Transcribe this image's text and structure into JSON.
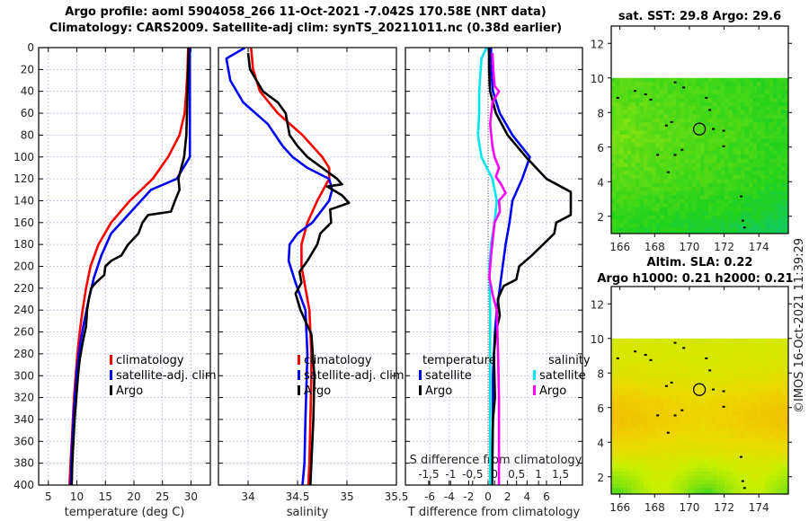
{
  "title_line1": "Argo profile: aoml 5904058_266 11-Oct-2021 -7.042S 170.58E (NRT data)",
  "title_line2": "Climatology: CARS2009. Satellite-adj clim: synTS_20211011.nc (0.38d earlier)",
  "colors": {
    "climatology": "#ff0000",
    "satellite": "#0000ff",
    "argo": "#000000",
    "sal_satellite": "#00e5ee",
    "sal_argo": "#ff00ff"
  },
  "chart_data": [
    {
      "type": "line",
      "id": "temperature",
      "xlabel": "temperature (deg C)",
      "ylabel": "",
      "xlim": [
        3.3,
        33.4
      ],
      "ylim": [
        400,
        0
      ],
      "xticks": [
        5,
        10,
        15,
        20,
        25,
        30
      ],
      "yticks": [
        0,
        20,
        40,
        60,
        80,
        100,
        120,
        140,
        160,
        180,
        200,
        220,
        240,
        260,
        280,
        300,
        320,
        340,
        360,
        380,
        400
      ],
      "grid": true,
      "legend": {
        "placement": "right-middle",
        "entries": [
          "climatology",
          "satellite-adj. clim",
          "Argo"
        ]
      },
      "series": [
        {
          "name": "climatology",
          "color": "#ff0000",
          "points": [
            [
              29.5,
              0
            ],
            [
              29.4,
              20
            ],
            [
              29.2,
              40
            ],
            [
              28.9,
              60
            ],
            [
              28,
              80
            ],
            [
              26,
              100
            ],
            [
              23.3,
              120
            ],
            [
              19.3,
              140
            ],
            [
              16,
              160
            ],
            [
              13.8,
              180
            ],
            [
              12.4,
              200
            ],
            [
              11.6,
              220
            ],
            [
              11,
              240
            ],
            [
              10.5,
              260
            ],
            [
              10.1,
              280
            ],
            [
              9.8,
              300
            ],
            [
              9.5,
              320
            ],
            [
              9.3,
              340
            ],
            [
              9.1,
              360
            ],
            [
              8.9,
              380
            ],
            [
              8.7,
              400
            ]
          ]
        },
        {
          "name": "satellite-adj. clim",
          "color": "#0000ff",
          "points": [
            [
              29.8,
              0
            ],
            [
              29.8,
              20
            ],
            [
              29.8,
              40
            ],
            [
              29.8,
              60
            ],
            [
              29.8,
              80
            ],
            [
              29.8,
              100
            ],
            [
              27.5,
              120
            ],
            [
              23,
              130
            ],
            [
              19.5,
              150
            ],
            [
              16,
              170
            ],
            [
              14.3,
              190
            ],
            [
              13,
              210
            ],
            [
              12.1,
              230
            ],
            [
              11.3,
              250
            ],
            [
              10.6,
              270
            ],
            [
              10.1,
              290
            ],
            [
              9.8,
              310
            ],
            [
              9.5,
              330
            ],
            [
              9.3,
              350
            ],
            [
              9.1,
              370
            ],
            [
              8.9,
              400
            ]
          ]
        },
        {
          "name": "Argo",
          "color": "#000000",
          "points": [
            [
              29.6,
              0
            ],
            [
              29.5,
              20
            ],
            [
              29.4,
              40
            ],
            [
              29.3,
              60
            ],
            [
              29.2,
              80
            ],
            [
              28.8,
              100
            ],
            [
              28.3,
              110
            ],
            [
              27.8,
              120
            ],
            [
              28,
              130
            ],
            [
              27.2,
              140
            ],
            [
              26.5,
              150
            ],
            [
              22.5,
              153
            ],
            [
              21.5,
              160
            ],
            [
              20.8,
              170
            ],
            [
              19,
              180
            ],
            [
              17.8,
              190
            ],
            [
              16,
              195
            ],
            [
              15,
              200
            ],
            [
              14.8,
              208
            ],
            [
              13.3,
              215
            ],
            [
              12.5,
              220
            ],
            [
              12.1,
              230
            ],
            [
              11.8,
              240
            ],
            [
              11.6,
              255
            ],
            [
              11,
              270
            ],
            [
              10.5,
              285
            ],
            [
              10.2,
              300
            ],
            [
              9.9,
              320
            ],
            [
              9.6,
              340
            ],
            [
              9.4,
              360
            ],
            [
              9.2,
              380
            ],
            [
              9.1,
              400
            ]
          ]
        }
      ]
    },
    {
      "type": "line",
      "id": "salinity",
      "xlabel": "salinity",
      "xlim": [
        33.7,
        35.5
      ],
      "ylim": [
        400,
        0
      ],
      "xticks": [
        34,
        34.5,
        35,
        35.5
      ],
      "grid": true,
      "legend": {
        "placement": "right-middle",
        "entries": [
          "climatology",
          "satellite-adj. clim",
          "Argo"
        ]
      },
      "series": [
        {
          "name": "climatology",
          "color": "#ff0000",
          "points": [
            [
              34.03,
              0
            ],
            [
              34.05,
              20
            ],
            [
              34.12,
              40
            ],
            [
              34.3,
              60
            ],
            [
              34.55,
              80
            ],
            [
              34.75,
              100
            ],
            [
              34.82,
              110
            ],
            [
              34.82,
              120
            ],
            [
              34.7,
              140
            ],
            [
              34.6,
              160
            ],
            [
              34.54,
              180
            ],
            [
              34.54,
              200
            ],
            [
              34.58,
              220
            ],
            [
              34.62,
              240
            ],
            [
              34.63,
              260
            ],
            [
              34.64,
              280
            ],
            [
              34.64,
              300
            ],
            [
              34.63,
              340
            ],
            [
              34.62,
              380
            ],
            [
              34.61,
              400
            ]
          ]
        },
        {
          "name": "satellite-adj. clim",
          "color": "#0000ff",
          "points": [
            [
              33.97,
              0
            ],
            [
              33.78,
              10
            ],
            [
              33.82,
              30
            ],
            [
              33.95,
              50
            ],
            [
              34.2,
              70
            ],
            [
              34.35,
              90
            ],
            [
              34.45,
              100
            ],
            [
              34.6,
              110
            ],
            [
              34.82,
              120
            ],
            [
              34.85,
              130
            ],
            [
              34.82,
              140
            ],
            [
              34.65,
              160
            ],
            [
              34.5,
              170
            ],
            [
              34.42,
              180
            ],
            [
              34.41,
              195
            ],
            [
              34.48,
              215
            ],
            [
              34.58,
              240
            ],
            [
              34.6,
              280
            ],
            [
              34.58,
              340
            ],
            [
              34.57,
              380
            ],
            [
              34.55,
              400
            ]
          ]
        },
        {
          "name": "Argo",
          "color": "#000000",
          "points": [
            [
              34,
              5
            ],
            [
              34.02,
              20
            ],
            [
              34.15,
              40
            ],
            [
              34.3,
              50
            ],
            [
              34.38,
              60
            ],
            [
              34.42,
              80
            ],
            [
              34.5,
              90
            ],
            [
              34.6,
              100
            ],
            [
              34.75,
              110
            ],
            [
              34.9,
              120
            ],
            [
              34.95,
              125
            ],
            [
              34.8,
              127
            ],
            [
              34.95,
              135
            ],
            [
              35.02,
              142
            ],
            [
              34.83,
              148
            ],
            [
              34.84,
              160
            ],
            [
              34.73,
              170
            ],
            [
              34.7,
              180
            ],
            [
              34.6,
              195
            ],
            [
              34.52,
              205
            ],
            [
              34.54,
              215
            ],
            [
              34.48,
              225
            ],
            [
              34.53,
              240
            ],
            [
              34.58,
              250
            ],
            [
              34.64,
              262
            ],
            [
              34.67,
              300
            ],
            [
              34.66,
              340
            ],
            [
              34.64,
              380
            ],
            [
              34.63,
              400
            ]
          ]
        }
      ]
    },
    {
      "type": "line",
      "id": "difference",
      "xlabel": "T difference from climatology",
      "x2label": "S difference from climatology",
      "xlim": [
        -8.5,
        9.7
      ],
      "x2lim": [
        -2.03,
        2.0
      ],
      "ylim": [
        400,
        0
      ],
      "xticks": [
        -6,
        -4,
        -2,
        0,
        2,
        4,
        6
      ],
      "x2ticks": [
        -1.5,
        -1,
        -0.5,
        0,
        0.5,
        1,
        1.5
      ],
      "grid": true,
      "legend": {
        "placement": "right-middle",
        "groups": [
          {
            "title": "temperature",
            "entries": [
              "satellite",
              "Argo"
            ]
          },
          {
            "title": "salinity",
            "entries": [
              "satellite",
              "Argo"
            ]
          }
        ]
      },
      "series": [
        {
          "name": "temperature satellite",
          "axis": "T",
          "color": "#0000ff",
          "points": [
            [
              0.3,
              0
            ],
            [
              0.3,
              20
            ],
            [
              0.5,
              40
            ],
            [
              1.2,
              60
            ],
            [
              2.5,
              80
            ],
            [
              4.3,
              100
            ],
            [
              3.5,
              120
            ],
            [
              2.5,
              140
            ],
            [
              2.2,
              160
            ],
            [
              1.8,
              180
            ],
            [
              1.5,
              200
            ],
            [
              1.2,
              220
            ],
            [
              0.9,
              240
            ],
            [
              0.7,
              260
            ],
            [
              0.5,
              300
            ],
            [
              0.5,
              340
            ],
            [
              0.4,
              400
            ]
          ]
        },
        {
          "name": "temperature Argo",
          "axis": "T",
          "color": "#000000",
          "points": [
            [
              0.1,
              0
            ],
            [
              0.1,
              20
            ],
            [
              0.2,
              40
            ],
            [
              0.8,
              60
            ],
            [
              2.0,
              80
            ],
            [
              3.9,
              100
            ],
            [
              6,
              120
            ],
            [
              8.5,
              132
            ],
            [
              8.5,
              153
            ],
            [
              7,
              160
            ],
            [
              6.8,
              170
            ],
            [
              4.5,
              190
            ],
            [
              3.2,
              200
            ],
            [
              2.9,
              212
            ],
            [
              1.6,
              218
            ],
            [
              1.0,
              230
            ],
            [
              1.2,
              245
            ],
            [
              0.8,
              260
            ],
            [
              0.6,
              280
            ],
            [
              0.7,
              320
            ],
            [
              0.5,
              340
            ],
            [
              0.4,
              400
            ]
          ]
        },
        {
          "name": "salinity satellite",
          "axis": "S",
          "color": "#00e5ee",
          "points": [
            [
              -0.18,
              0
            ],
            [
              -0.3,
              10
            ],
            [
              -0.35,
              40
            ],
            [
              -0.35,
              60
            ],
            [
              -0.38,
              80
            ],
            [
              -0.3,
              100
            ],
            [
              -0.05,
              120
            ],
            [
              0.05,
              140
            ],
            [
              0.0,
              160
            ],
            [
              -0.08,
              180
            ],
            [
              -0.12,
              200
            ],
            [
              -0.1,
              240
            ],
            [
              -0.1,
              300
            ],
            [
              -0.1,
              400
            ]
          ]
        },
        {
          "name": "salinity Argo",
          "axis": "S",
          "color": "#ff00ff",
          "points": [
            [
              -0.05,
              5
            ],
            [
              -0.03,
              20
            ],
            [
              0.0,
              35
            ],
            [
              0.1,
              40
            ],
            [
              -0.05,
              50
            ],
            [
              -0.1,
              70
            ],
            [
              -0.05,
              90
            ],
            [
              0.0,
              100
            ],
            [
              0.1,
              110
            ],
            [
              0.03,
              118
            ],
            [
              0.15,
              125
            ],
            [
              0.25,
              133
            ],
            [
              0.1,
              140
            ],
            [
              0.12,
              150
            ],
            [
              0.0,
              160
            ],
            [
              -0.08,
              190
            ],
            [
              -0.12,
              210
            ],
            [
              -0.05,
              225
            ],
            [
              0.05,
              240
            ],
            [
              0.08,
              280
            ],
            [
              0.1,
              320
            ],
            [
              0.1,
              400
            ]
          ]
        }
      ]
    },
    {
      "type": "heatmap",
      "id": "sst-map",
      "title": "sat. SST: 29.8 Argo: 29.6",
      "xlim": [
        165.5,
        175.7
      ],
      "ylim": [
        1,
        13
      ],
      "xticks": [
        166,
        168,
        170,
        172,
        174
      ],
      "yticks": [
        2,
        4,
        6,
        8,
        10,
        12
      ],
      "data_extent_lat": [
        1,
        10
      ],
      "argo_position": [
        170.58,
        7.042
      ],
      "palette": [
        "#1fd6b0",
        "#10c860",
        "#22d21c",
        "#5edc14",
        "#a8e812"
      ]
    },
    {
      "type": "heatmap",
      "id": "sla-map",
      "title": "Altim. SLA: 0.22",
      "subtitle": "Argo h1000: 0.21 h2000: 0.21",
      "xlim": [
        165.5,
        175.7
      ],
      "ylim": [
        1,
        13
      ],
      "xticks": [
        166,
        168,
        170,
        172,
        174
      ],
      "yticks": [
        2,
        4,
        6,
        8,
        10,
        12
      ],
      "data_extent_lat": [
        1,
        10
      ],
      "argo_position": [
        170.58,
        7.042
      ],
      "palette": [
        "#22d21c",
        "#8ae40c",
        "#c8f000",
        "#ecd800",
        "#f4b400"
      ]
    }
  ],
  "copyright": "©IMOS 16-Oct-2021 11:39:29"
}
